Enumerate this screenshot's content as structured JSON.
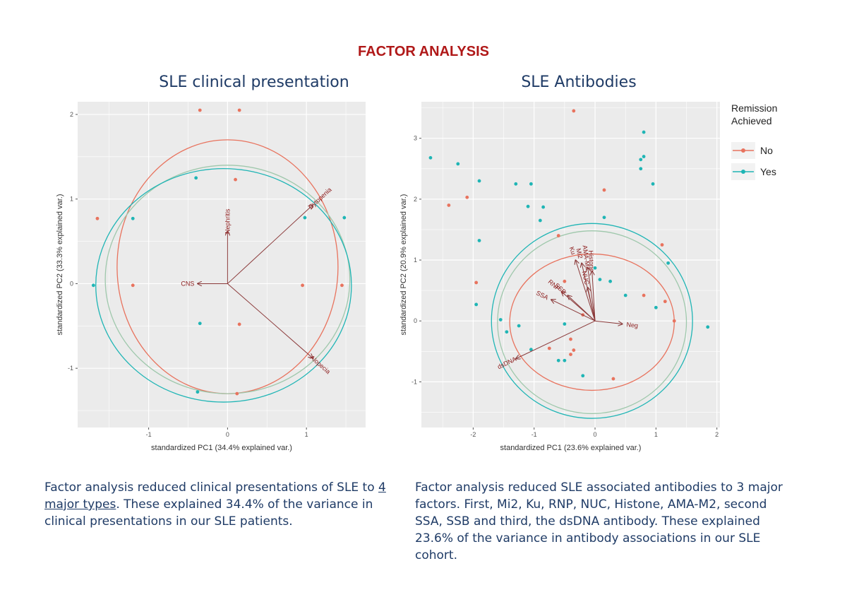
{
  "title": "FACTOR ANALYSIS",
  "colors": {
    "no": "#e8735e",
    "yes": "#1fb5b5",
    "arrow": "#8b3a3a",
    "title": "#b01818",
    "text": "#1f3b66"
  },
  "legend": {
    "title_line1": "Remission",
    "title_line2": "Achieved",
    "no_label": "No",
    "yes_label": "Yes"
  },
  "captions": {
    "left_before": "Factor analysis reduced clinical presentations of SLE to ",
    "left_underlined": "4 major types",
    "left_after": ". These explained 34.4% of the variance in clinical presentations in our SLE patients.",
    "right": "Factor analysis reduced SLE associated antibodies to 3 major factors. First, Mi2, Ku, RNP, NUC, Histone, AMA-M2, second SSA, SSB and third, the dsDNA antibody. These explained 23.6% of the variance in antibody associations in our SLE cohort."
  },
  "chart_data": [
    {
      "type": "scatter",
      "title": "SLE clinical presentation",
      "xlabel": "standardized PC1 (34.4% explained var.)",
      "ylabel": "standardized PC2 (33.3% explained var.)",
      "xlim": [
        -1.9,
        1.75
      ],
      "ylim": [
        -1.7,
        2.15
      ],
      "xticks": [
        -1,
        0,
        1
      ],
      "yticks": [
        -1,
        0,
        1,
        2
      ],
      "series": [
        {
          "name": "No",
          "points": [
            [
              -0.35,
              2.05
            ],
            [
              0.15,
              2.05
            ],
            [
              0.1,
              1.23
            ],
            [
              -1.65,
              0.77
            ],
            [
              -1.2,
              -0.02
            ],
            [
              0.95,
              -0.02
            ],
            [
              1.45,
              -0.02
            ],
            [
              0.15,
              -0.48
            ],
            [
              0.12,
              -1.3
            ]
          ]
        },
        {
          "name": "Yes",
          "points": [
            [
              -0.4,
              1.25
            ],
            [
              -1.2,
              0.77
            ],
            [
              0.98,
              0.78
            ],
            [
              1.48,
              0.78
            ],
            [
              -1.7,
              -0.02
            ],
            [
              -0.35,
              -0.47
            ],
            [
              -0.38,
              -1.28
            ]
          ]
        }
      ],
      "ellipses": [
        {
          "group": "No",
          "cx": 0.0,
          "cy": 0.2,
          "rx": 1.4,
          "ry": 1.5
        },
        {
          "group": "mid",
          "cx": 0.0,
          "cy": 0.05,
          "rx": 1.55,
          "ry": 1.35
        },
        {
          "group": "Yes",
          "cx": -0.05,
          "cy": -0.02,
          "rx": 1.62,
          "ry": 1.38
        }
      ],
      "loadings": [
        {
          "label": "Cytopenia",
          "x": 1.08,
          "y": 0.93
        },
        {
          "label": "Nephritis",
          "x": 0.0,
          "y": 0.62
        },
        {
          "label": "CNS",
          "x": -0.38,
          "y": 0.0
        },
        {
          "label": "Alopecia",
          "x": 1.08,
          "y": -0.88
        }
      ]
    },
    {
      "type": "scatter",
      "title": "SLE Antibodies",
      "xlabel": "standardized PC1 (23.6% explained var.)",
      "ylabel": "standardized PC2 (20.9% explained var.)",
      "xlim": [
        -2.85,
        2.05
      ],
      "ylim": [
        -1.75,
        3.6
      ],
      "xticks": [
        -2,
        -1,
        0,
        1,
        2
      ],
      "yticks": [
        -1,
        0,
        1,
        2,
        3
      ],
      "series": [
        {
          "name": "No",
          "points": [
            [
              -0.35,
              3.45
            ],
            [
              -2.4,
              1.9
            ],
            [
              -2.1,
              2.03
            ],
            [
              0.15,
              2.15
            ],
            [
              -1.95,
              0.63
            ],
            [
              -0.6,
              1.4
            ],
            [
              1.1,
              1.25
            ],
            [
              1.15,
              0.32
            ],
            [
              1.3,
              0.0
            ],
            [
              0.8,
              0.42
            ],
            [
              -0.5,
              0.65
            ],
            [
              -0.2,
              0.1
            ],
            [
              -0.4,
              -0.3
            ],
            [
              -0.35,
              -0.48
            ],
            [
              -0.4,
              -0.55
            ],
            [
              -0.75,
              -0.45
            ],
            [
              0.3,
              -0.95
            ]
          ]
        },
        {
          "name": "Yes",
          "points": [
            [
              -2.7,
              2.68
            ],
            [
              -2.25,
              2.58
            ],
            [
              -1.9,
              2.3
            ],
            [
              -1.3,
              2.25
            ],
            [
              -1.05,
              2.25
            ],
            [
              -1.1,
              1.88
            ],
            [
              -0.85,
              1.87
            ],
            [
              -1.9,
              1.32
            ],
            [
              -0.9,
              1.65
            ],
            [
              0.15,
              1.7
            ],
            [
              0.8,
              3.1
            ],
            [
              0.8,
              2.7
            ],
            [
              0.75,
              2.65
            ],
            [
              0.95,
              2.25
            ],
            [
              0.75,
              2.5
            ],
            [
              1.2,
              0.95
            ],
            [
              0.0,
              0.87
            ],
            [
              0.08,
              0.68
            ],
            [
              0.25,
              0.65
            ],
            [
              1.0,
              0.22
            ],
            [
              0.5,
              0.42
            ],
            [
              -1.95,
              0.27
            ],
            [
              -1.55,
              0.02
            ],
            [
              -1.25,
              -0.08
            ],
            [
              -0.5,
              -0.05
            ],
            [
              -1.45,
              -0.18
            ],
            [
              -1.05,
              -0.47
            ],
            [
              -0.6,
              -0.65
            ],
            [
              -0.5,
              -0.65
            ],
            [
              -0.2,
              -0.9
            ],
            [
              1.85,
              -0.1
            ]
          ]
        }
      ],
      "ellipses": [
        {
          "group": "No",
          "cx": -0.05,
          "cy": -0.02,
          "rx": 1.35,
          "ry": 1.12
        },
        {
          "group": "mid",
          "cx": -0.05,
          "cy": -0.02,
          "rx": 1.55,
          "ry": 1.5
        },
        {
          "group": "Yes",
          "cx": -0.05,
          "cy": 0.0,
          "rx": 1.65,
          "ry": 1.6
        }
      ],
      "loadings": [
        {
          "label": "Ku",
          "x": -0.32,
          "y": 1.0
        },
        {
          "label": "Mi2",
          "x": -0.22,
          "y": 0.95
        },
        {
          "label": "AMA-M2",
          "x": -0.12,
          "y": 0.88
        },
        {
          "label": "Histone",
          "x": -0.05,
          "y": 0.82
        },
        {
          "label": "NUC",
          "x": -0.12,
          "y": 0.55
        },
        {
          "label": "RNP",
          "x": -0.55,
          "y": 0.48
        },
        {
          "label": "SSB",
          "x": -0.45,
          "y": 0.42
        },
        {
          "label": "SSA",
          "x": -0.72,
          "y": 0.35
        },
        {
          "label": "Neg",
          "x": 0.45,
          "y": -0.05
        },
        {
          "label": "dsDNA",
          "x": -1.3,
          "y": -0.62
        }
      ]
    }
  ]
}
